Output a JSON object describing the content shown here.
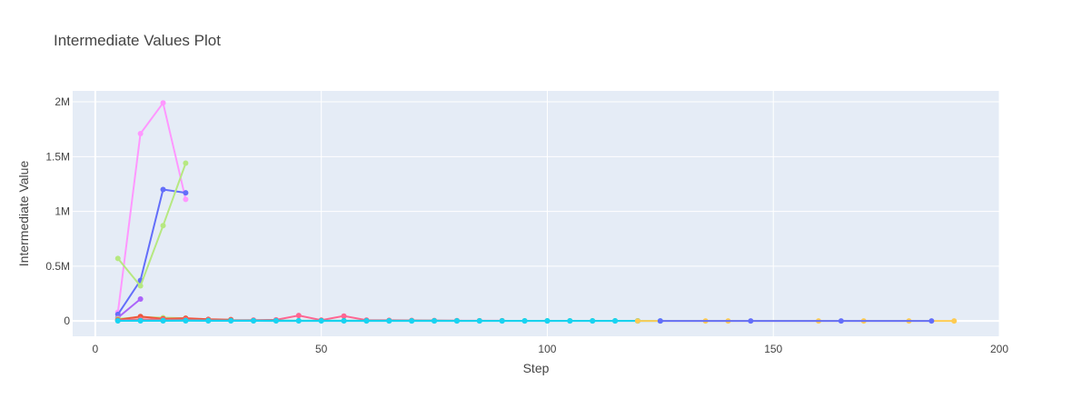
{
  "chart_data": {
    "type": "line",
    "title": "Intermediate Values Plot",
    "xlabel": "Step",
    "ylabel": "Intermediate Value",
    "xlim": [
      -5,
      200
    ],
    "ylim": [
      -140000,
      2100000
    ],
    "x_ticks": [
      0,
      50,
      100,
      150,
      200
    ],
    "x_tick_labels": [
      "0",
      "50",
      "100",
      "150",
      "200"
    ],
    "y_ticks": [
      0,
      500000,
      1000000,
      1500000,
      2000000
    ],
    "y_tick_labels": [
      "0",
      "0.5M",
      "1M",
      "1.5M",
      "2M"
    ],
    "grid": true,
    "plot_bgcolor": "#e5ecf6",
    "series": [
      {
        "color": "#ff97ff",
        "x": [
          5,
          10,
          15,
          20
        ],
        "y": [
          80000,
          1710000,
          1990000,
          1110000
        ]
      },
      {
        "color": "#636efa",
        "x": [
          5,
          10,
          15,
          20
        ],
        "y": [
          60000,
          370000,
          1200000,
          1170000
        ]
      },
      {
        "color": "#b6e880",
        "x": [
          5,
          10,
          15,
          20
        ],
        "y": [
          570000,
          320000,
          870000,
          1440000
        ]
      },
      {
        "color": "#ab63fa",
        "x": [
          5,
          10
        ],
        "y": [
          30000,
          200000
        ]
      },
      {
        "color": "#b6e880",
        "x": [
          5,
          10,
          15,
          20
        ],
        "y": [
          20000,
          35000,
          30000,
          25000
        ]
      },
      {
        "color": "#ef553b",
        "x": [
          5,
          10,
          15,
          20,
          25,
          30
        ],
        "y": [
          10000,
          40000,
          20000,
          25000,
          15000,
          12000
        ]
      },
      {
        "color": "#ff6692",
        "x": [
          5,
          10,
          15,
          20,
          25,
          30,
          35,
          40,
          45,
          50,
          55,
          60,
          65,
          70,
          75,
          80,
          85,
          90
        ],
        "y": [
          5000,
          15000,
          10000,
          12000,
          8000,
          6000,
          8000,
          10000,
          50000,
          8000,
          45000,
          8000,
          6000,
          5000,
          4000,
          3000,
          2000,
          2000
        ]
      },
      {
        "color": "#00cc96",
        "x": [
          5,
          10,
          15,
          20,
          25,
          30,
          35,
          40,
          45,
          50,
          55,
          60,
          65,
          70,
          75,
          80,
          85,
          90,
          95,
          100,
          105,
          110,
          115,
          120
        ],
        "y": [
          2000,
          3000,
          3000,
          4000,
          3000,
          3000,
          2500,
          2500,
          2000,
          2000,
          2000,
          1500,
          1500,
          1500,
          1500,
          1000,
          1000,
          1000,
          1000,
          1000,
          1000,
          800,
          800,
          800
        ]
      },
      {
        "color": "#19d3f3",
        "x": [
          5,
          10,
          15,
          20,
          25,
          30,
          35,
          40,
          45,
          50,
          55,
          60,
          65,
          70,
          75,
          80,
          85,
          90,
          95,
          100,
          105,
          110,
          115,
          120,
          125
        ],
        "y": [
          1000,
          1000,
          1000,
          1500,
          1000,
          800,
          700,
          600,
          600,
          500,
          500,
          500,
          400,
          400,
          400,
          400,
          300,
          300,
          300,
          300,
          300,
          300,
          200,
          200,
          200
        ]
      },
      {
        "color": "#fecb52",
        "x": [
          120,
          135,
          140,
          160,
          170,
          180,
          190
        ],
        "y": [
          500,
          400,
          400,
          300,
          300,
          300,
          200
        ]
      },
      {
        "color": "#636efa",
        "x": [
          125,
          145,
          165,
          185
        ],
        "y": [
          400,
          300,
          300,
          200
        ]
      }
    ]
  }
}
